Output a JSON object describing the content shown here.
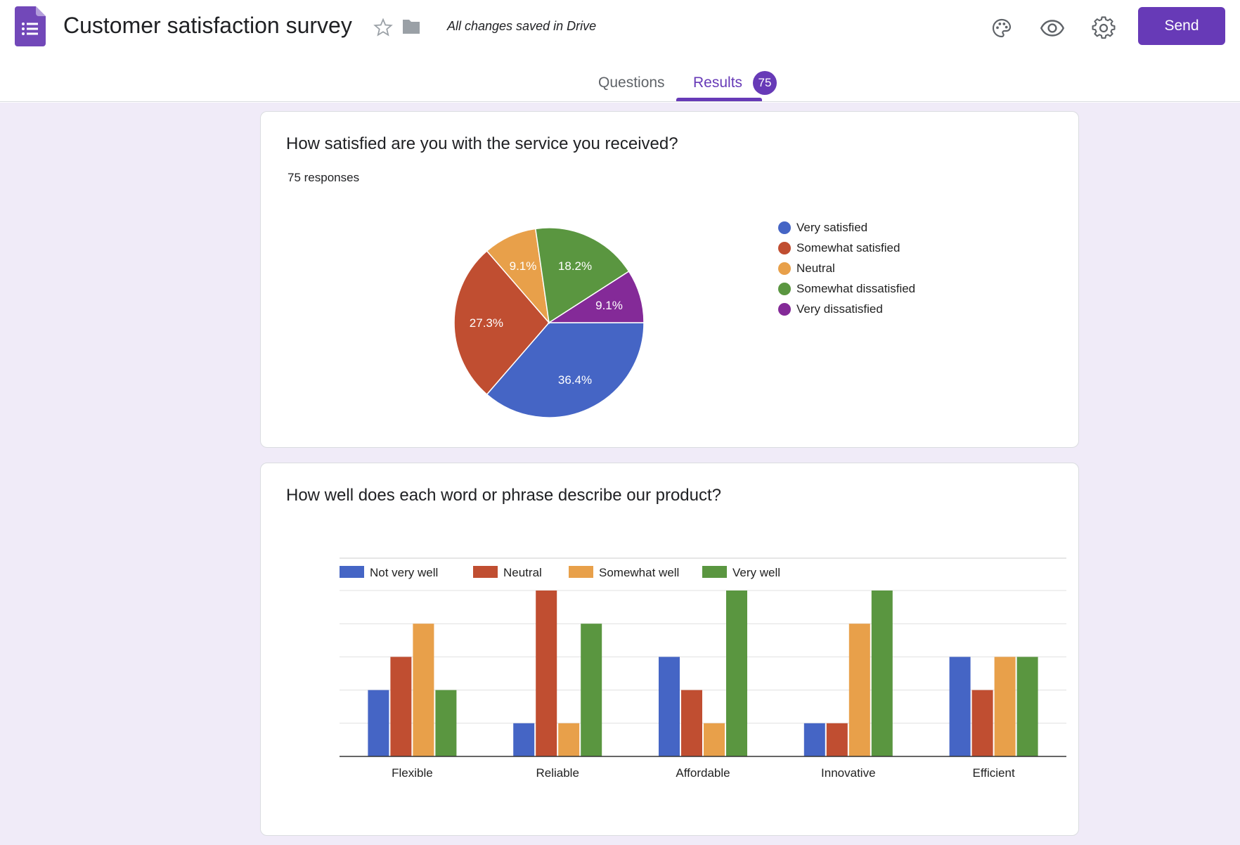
{
  "header": {
    "title": "Customer satisfaction survey",
    "saved_status": "All changes saved in Drive",
    "send_label": "Send"
  },
  "tabs": {
    "questions_label": "Questions",
    "results_label": "Results",
    "results_count": "75"
  },
  "colors": {
    "accent": "#673ab7",
    "blue": "#4565c5",
    "red": "#c04e31",
    "orange": "#e8a04a",
    "green": "#5a9640",
    "purple": "#842a98"
  },
  "questions": [
    {
      "title": "How satisfied are you with the service you received?",
      "responses": "75 responses"
    },
    {
      "title": "How well does each word or phrase describe our product?"
    }
  ],
  "chart_data": [
    {
      "type": "pie",
      "title": "How satisfied are you with the service you received?",
      "labels": [
        "Very satisfied",
        "Somewhat satisfied",
        "Neutral",
        "Somewhat dissatisfied",
        "Very dissatisfied"
      ],
      "values": [
        36.4,
        27.3,
        9.1,
        18.2,
        9.1
      ],
      "value_labels": [
        "36.4%",
        "27.3%",
        "9.1%",
        "18.2%",
        "9.1%"
      ],
      "colors": [
        "#4565c5",
        "#c04e31",
        "#e8a04a",
        "#5a9640",
        "#842a98"
      ],
      "legend": "right"
    },
    {
      "type": "bar",
      "title": "How well does each word or phrase describe our product?",
      "categories": [
        "Flexible",
        "Reliable",
        "Affordable",
        "Innovative",
        "Efficient"
      ],
      "series": [
        {
          "name": "Not very well",
          "color": "#4565c5",
          "values": [
            2,
            1,
            3,
            1,
            3
          ]
        },
        {
          "name": "Neutral",
          "color": "#c04e31",
          "values": [
            3,
            5,
            2,
            1,
            2
          ]
        },
        {
          "name": "Somewhat well",
          "color": "#e8a04a",
          "values": [
            4,
            1,
            1,
            4,
            3
          ]
        },
        {
          "name": "Very well",
          "color": "#5a9640",
          "values": [
            2,
            4,
            5,
            5,
            3
          ]
        }
      ],
      "ylim": [
        0,
        5
      ],
      "grid": true,
      "legend": "top-left"
    }
  ]
}
